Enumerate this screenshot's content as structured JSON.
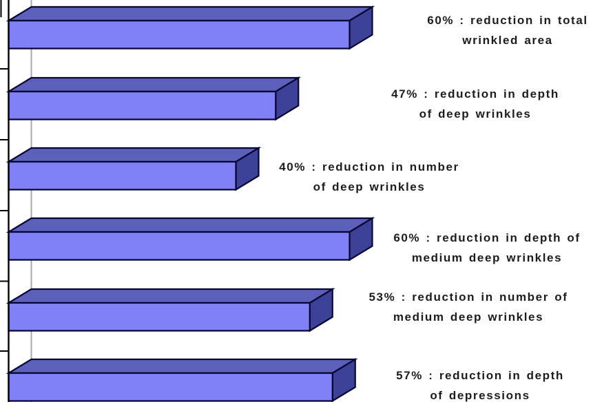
{
  "chart_data": {
    "type": "bar",
    "orientation": "horizontal",
    "style_3d": true,
    "title": "",
    "xlabel": "",
    "ylabel": "",
    "xlim": [
      0,
      62
    ],
    "grid": false,
    "legend": false,
    "axis_value_labels_visible": false,
    "bars": [
      {
        "value_percent": 60,
        "label_line1": "60% : reduction in total",
        "label_line2": "wrinkled area"
      },
      {
        "value_percent": 47,
        "label_line1": "47% : reduction in depth",
        "label_line2": "of deep wrinkles"
      },
      {
        "value_percent": 40,
        "label_line1": "40% : reduction in number",
        "label_line2": "of deep wrinkles"
      },
      {
        "value_percent": 60,
        "label_line1": "60% : reduction in depth of",
        "label_line2": "medium deep wrinkles"
      },
      {
        "value_percent": 53,
        "label_line1": "53% : reduction in number of",
        "label_line2": "medium deep wrinkles"
      },
      {
        "value_percent": 57,
        "label_line1": "57% : reduction in depth",
        "label_line2": "of depressions"
      }
    ],
    "colors": {
      "bar_front": "#8181f7",
      "bar_top": "#5d60bb",
      "bar_side": "#3e4198",
      "outline": "#070733",
      "axis": "#000000",
      "backwall": "#a8a8a8",
      "label_text": "#1c1c1c",
      "background": "#ffffff"
    }
  }
}
